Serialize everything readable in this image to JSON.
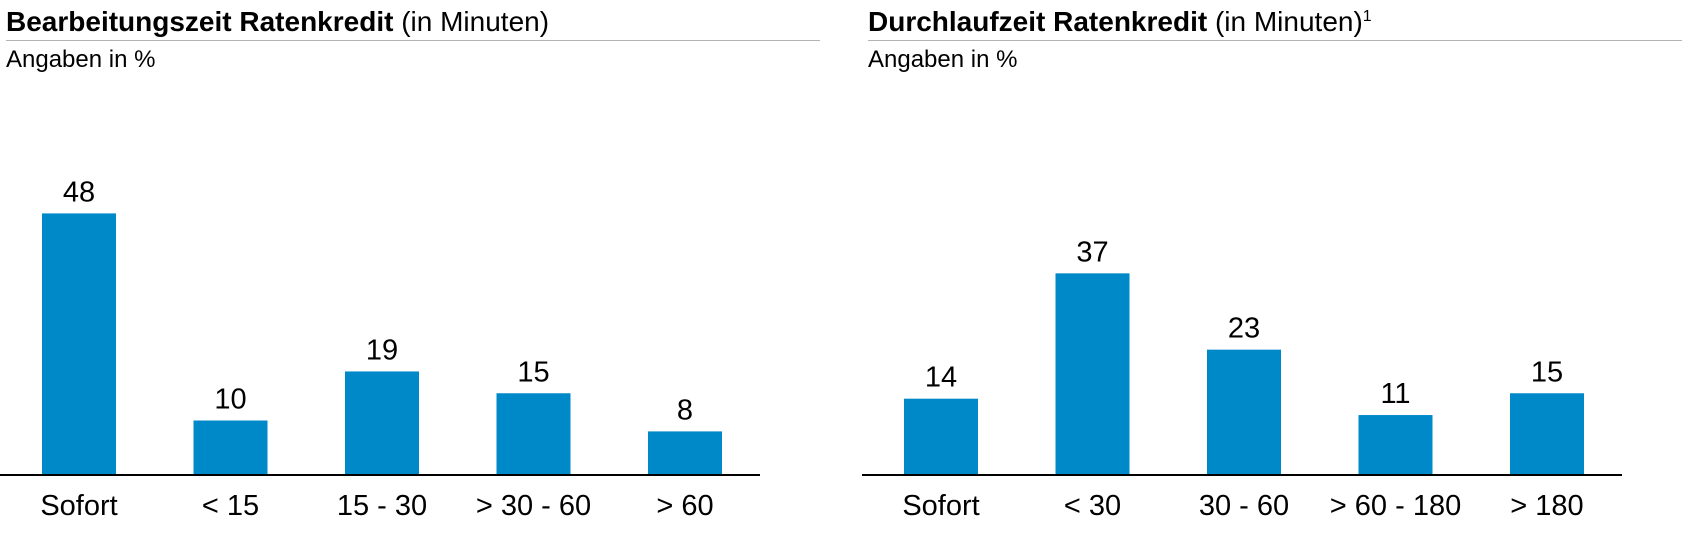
{
  "chart_data": [
    {
      "type": "bar",
      "title": "Bearbeitungszeit Ratenkredit",
      "title_suffix": "(in Minuten)",
      "title_footnote": "",
      "subtitle": "Angaben in %",
      "categories": [
        "Sofort",
        "< 15",
        "15 - 30",
        "> 30 - 60",
        "> 60"
      ],
      "values": [
        48,
        10,
        19,
        15,
        8
      ],
      "ylim": [
        0,
        50
      ],
      "bar_color": "#0089c9"
    },
    {
      "type": "bar",
      "title": "Durchlaufzeit Ratenkredit",
      "title_suffix": "(in Minuten)",
      "title_footnote": "1",
      "subtitle": "Angaben in %",
      "categories": [
        "Sofort",
        "< 30",
        "30 - 60",
        "> 60 - 180",
        "> 180"
      ],
      "values": [
        14,
        37,
        23,
        11,
        15
      ],
      "ylim": [
        0,
        50
      ],
      "bar_color": "#0089c9"
    }
  ]
}
